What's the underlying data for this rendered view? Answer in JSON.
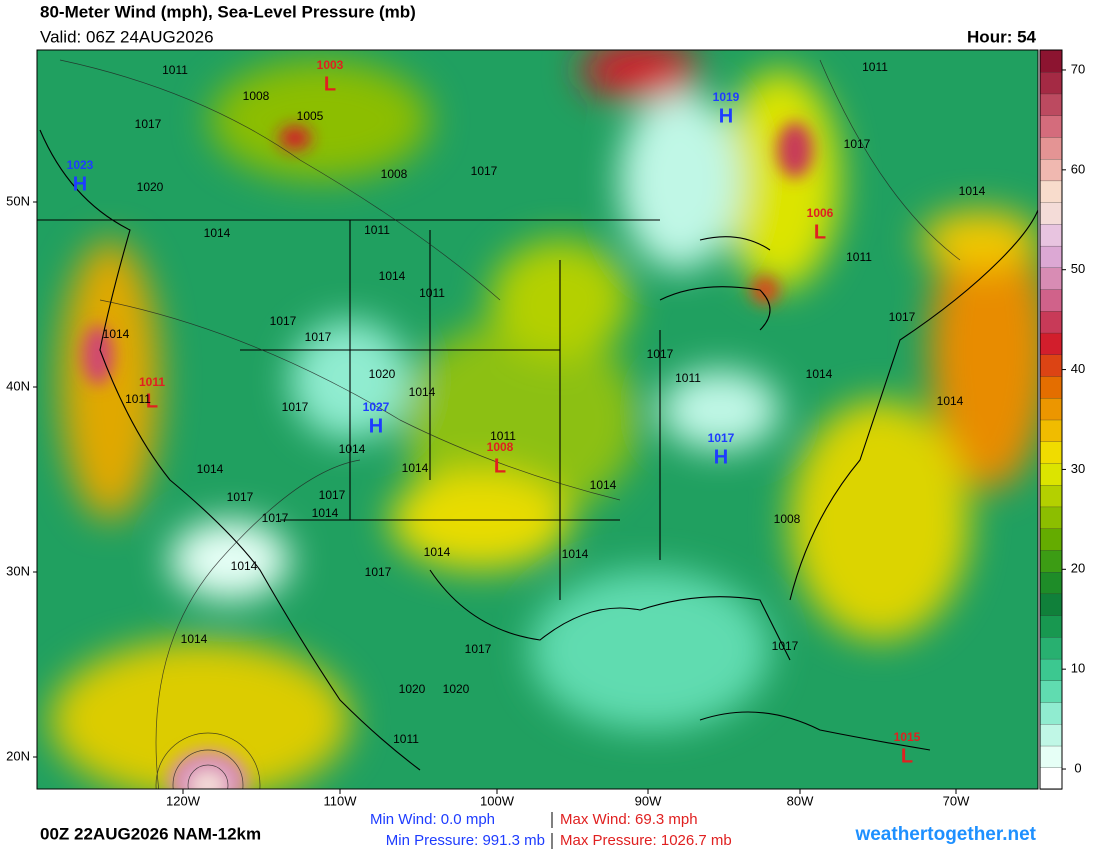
{
  "header": {
    "title": "80-Meter Wind (mph), Sea-Level Pressure (mb)",
    "valid": "Valid: 06Z 24AUG2026",
    "hour": "Hour: 54"
  },
  "colorbar": {
    "lim": [
      -2,
      72
    ],
    "ticks": [
      0,
      10,
      20,
      30,
      40,
      50,
      60,
      70
    ],
    "colors": [
      "#ffffff",
      "#e6fff6",
      "#c0f7e6",
      "#90ecd0",
      "#60dcb0",
      "#3cc890",
      "#28b070",
      "#189850",
      "#10803a",
      "#1e8c28",
      "#3c9c14",
      "#64ac00",
      "#8cbe00",
      "#b4d000",
      "#dce400",
      "#f0dc00",
      "#f0bc00",
      "#ec9600",
      "#e46e00",
      "#dc4414",
      "#d21e2c",
      "#c83a58",
      "#d0628a",
      "#d88cb4",
      "#dca8d4",
      "#e8c4e0",
      "#f4dcd8",
      "#f8dccc",
      "#f0b8b0",
      "#e49494",
      "#d46c7c",
      "#bc4a60",
      "#a42a44",
      "#8c1430"
    ]
  },
  "latitudes": [
    "50N",
    "40N",
    "30N",
    "20N"
  ],
  "longitudes": [
    "120W",
    "110W",
    "100W",
    "90W",
    "80W",
    "70W"
  ],
  "pressure_centers": [
    {
      "letter": "H",
      "value": 1023
    },
    {
      "letter": "L",
      "value": 1003
    },
    {
      "letter": "H",
      "value": 1019
    },
    {
      "letter": "L",
      "value": 1006
    },
    {
      "letter": "L",
      "value": 1011
    },
    {
      "letter": "H",
      "value": 1027
    },
    {
      "letter": "L",
      "value": 1008
    },
    {
      "letter": "H",
      "value": 1017
    },
    {
      "letter": "L",
      "value": 1015
    }
  ],
  "isobar_labels": [
    1011,
    1008,
    1017,
    1005,
    1020,
    1008,
    1011,
    1014,
    1017,
    1011,
    1014,
    1011,
    1017,
    1017,
    1017,
    1014,
    1020,
    1014,
    1011,
    1017,
    1017,
    1011,
    1014,
    1017,
    1014,
    1011,
    1014,
    1014,
    1014,
    1014,
    1017,
    1017,
    1014,
    1017,
    1014,
    1011,
    1008,
    1014,
    1014,
    1017,
    1014,
    1020,
    1020,
    1014,
    1017,
    1017,
    1011
  ],
  "footer": {
    "run": "00Z 22AUG2026 NAM-12km",
    "min_wind": "Min Wind:  0.0 mph",
    "max_wind": "Max Wind: 69.3 mph",
    "min_pressure": "Min Pressure: 991.3 mb",
    "max_pressure": "Max Pressure: 1026.7 mb",
    "site": "weathertogether.net"
  }
}
